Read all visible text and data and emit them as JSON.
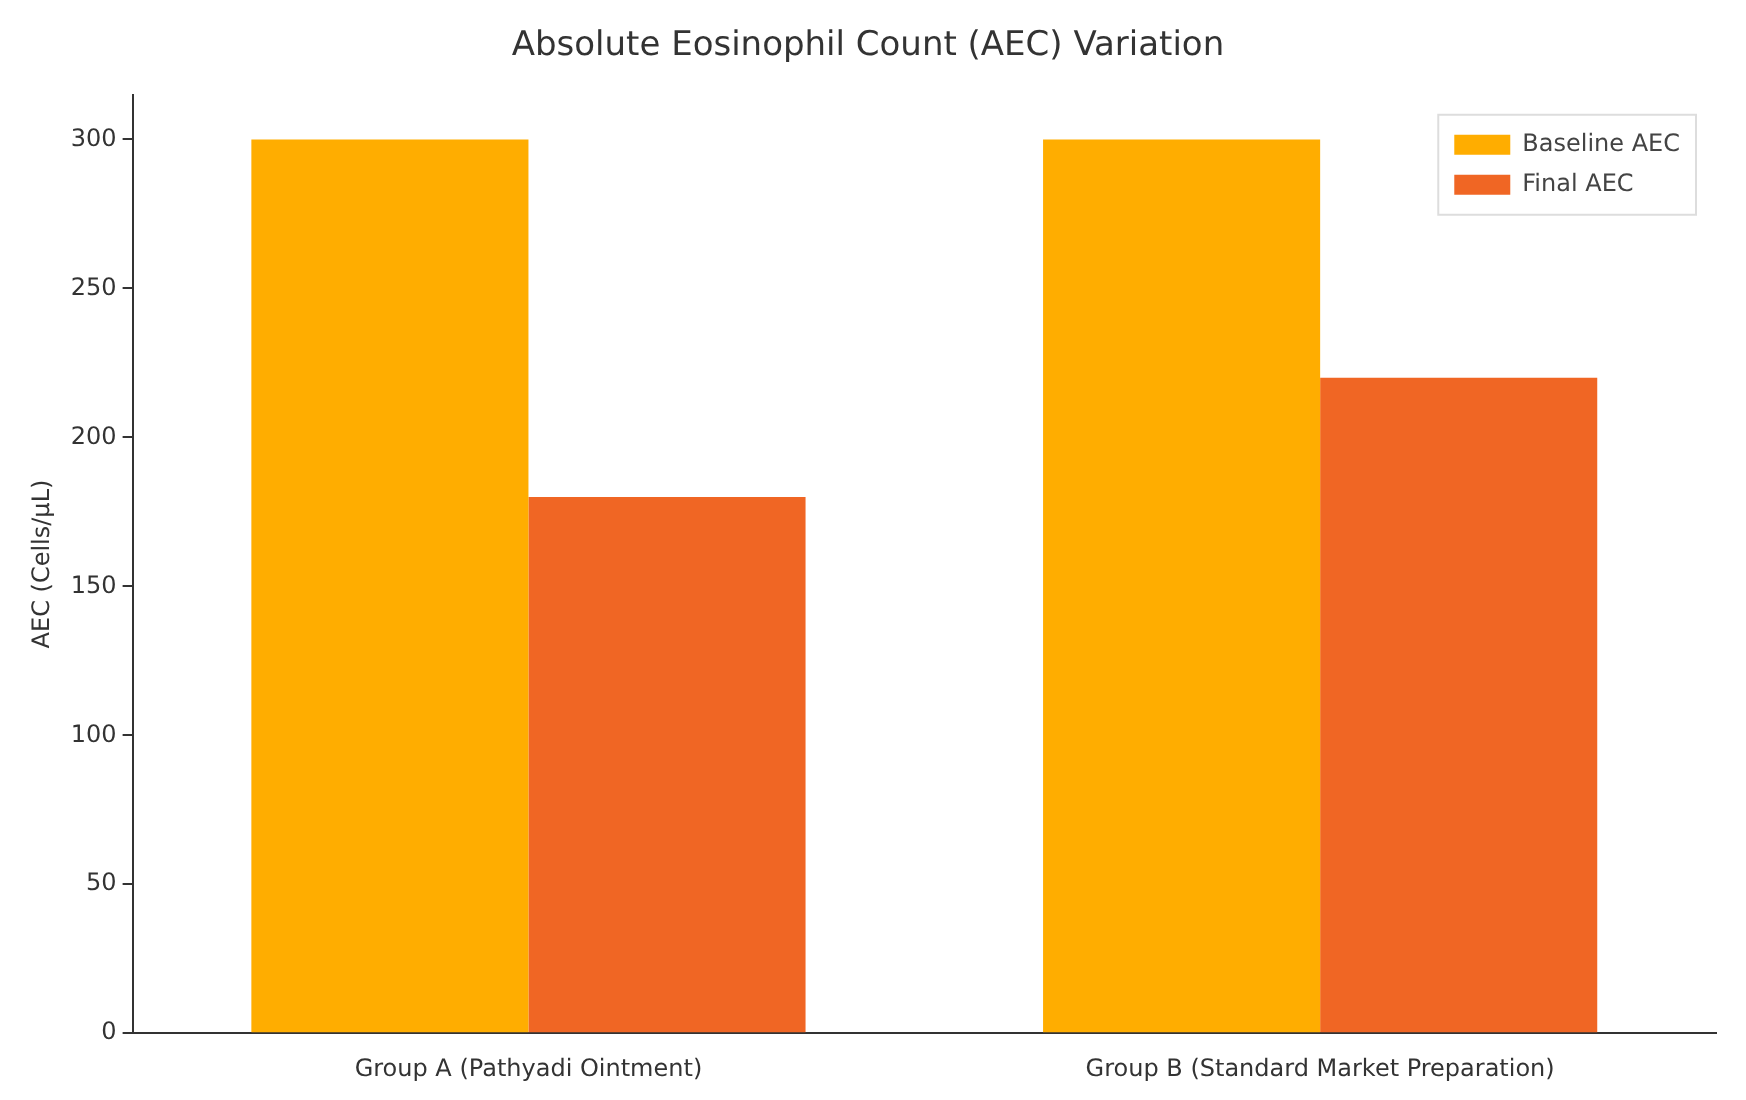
{
  "chart_data": {
    "type": "bar",
    "title": "Absolute Eosinophil Count (AEC) Variation",
    "ylabel": "AEC (Cells/µL)",
    "categories": [
      "Group A (Pathyadi Ointment)",
      "Group B (Standard Market Preparation)"
    ],
    "series": [
      {
        "name": "Baseline AEC",
        "color": "#ffad00",
        "values": [
          300,
          300
        ]
      },
      {
        "name": "Final AEC",
        "color": "#f06624",
        "values": [
          180,
          220
        ]
      }
    ],
    "ylim": [
      0,
      315
    ],
    "yticks": [
      0,
      50,
      100,
      150,
      200,
      250,
      300
    ],
    "grid": false,
    "legend": "top right"
  }
}
